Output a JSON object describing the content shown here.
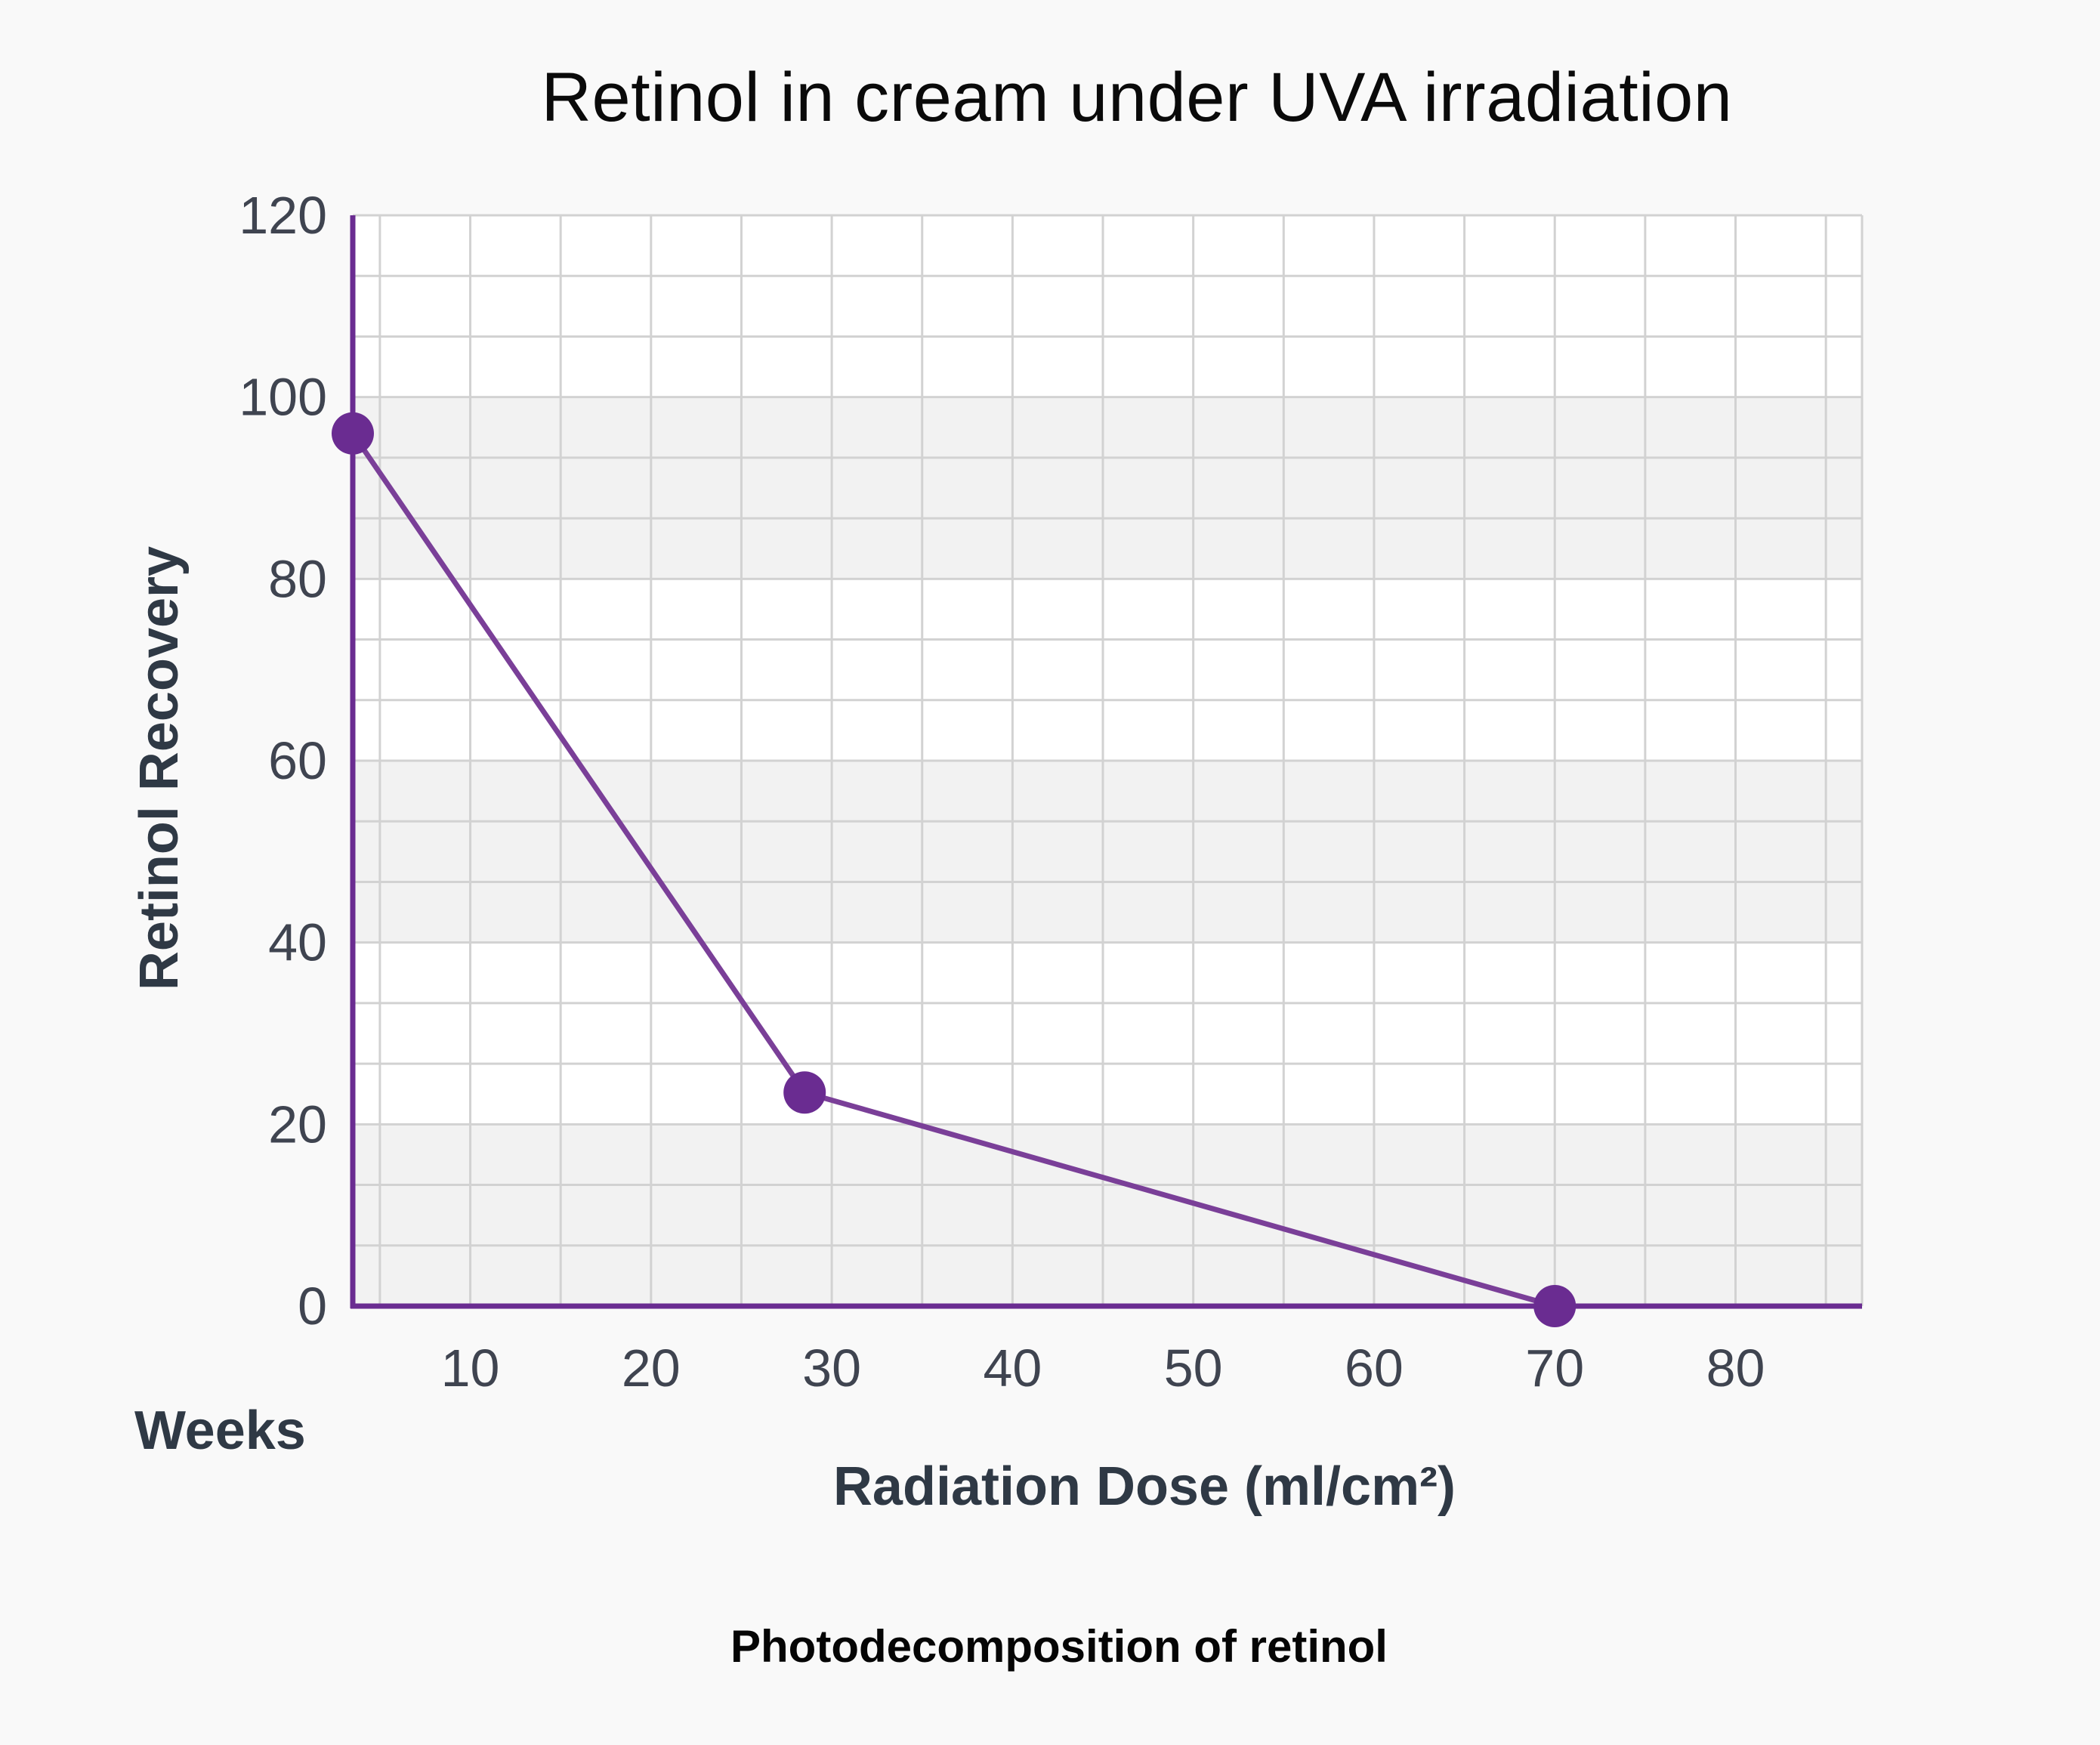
{
  "chart_data": {
    "type": "line",
    "title": "Retinol in cream under UVA irradiation",
    "subtitle": "Photodecomposition of retinol",
    "xlabel": "Radiation Dose (ml/cm²)",
    "x_corner_label": "Weeks",
    "ylabel": "Retinol Recovery",
    "x_ticks": [
      10,
      20,
      30,
      40,
      50,
      60,
      70,
      80
    ],
    "y_ticks": [
      0,
      20,
      40,
      60,
      80,
      100,
      120
    ],
    "xlim": [
      3.5,
      87
    ],
    "ylim": [
      0,
      120
    ],
    "grid": true,
    "legend": "none",
    "series": [
      {
        "x": [
          3.5,
          28.5,
          70
        ],
        "y": [
          96,
          23.5,
          0
        ]
      }
    ],
    "colors": {
      "line": "#7a3f98",
      "marker": "#6a2c91",
      "axis": "#6a2c91",
      "grid": "#d2d2d2",
      "band_light": "#ffffff",
      "band_dark": "#f2f2f2"
    }
  }
}
